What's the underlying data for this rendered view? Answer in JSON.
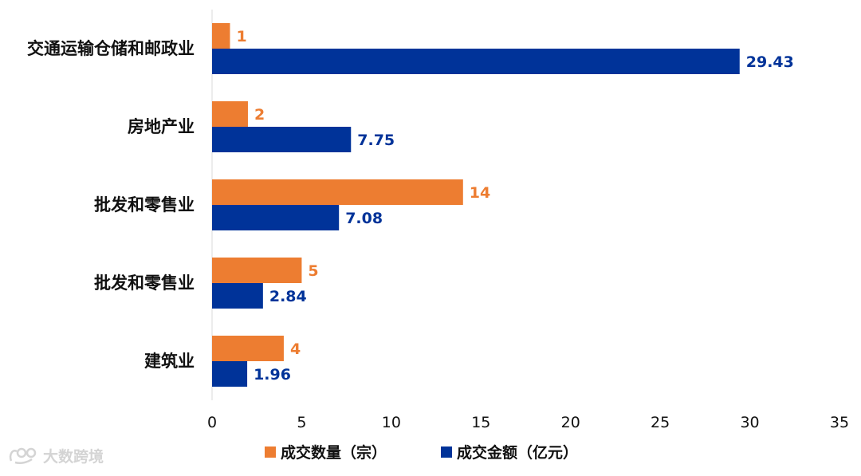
{
  "chart_data": {
    "type": "bar",
    "orientation": "horizontal",
    "categories": [
      "交通运输仓储和邮政业",
      "房地产业",
      "批发和零售业",
      "批发和零售业",
      "建筑业"
    ],
    "series": [
      {
        "name": "成交数量（宗）",
        "color": "#ed7d31",
        "values": [
          1,
          2,
          14,
          5,
          4
        ],
        "labels": [
          "1",
          "2",
          "14",
          "5",
          "4"
        ]
      },
      {
        "name": "成交金额（亿元）",
        "color": "#003399",
        "values": [
          29.43,
          7.75,
          7.08,
          2.84,
          1.96
        ],
        "labels": [
          "29.43",
          "7.75",
          "7.08",
          "2.84",
          "1.96"
        ]
      }
    ],
    "xlim": [
      0,
      35
    ],
    "xticks": [
      "0",
      "5",
      "10",
      "15",
      "20",
      "25",
      "30",
      "35"
    ],
    "grid": false,
    "legend_position": "bottom"
  },
  "watermark": {
    "text": "大数跨境",
    "icon": "logo-icon"
  }
}
